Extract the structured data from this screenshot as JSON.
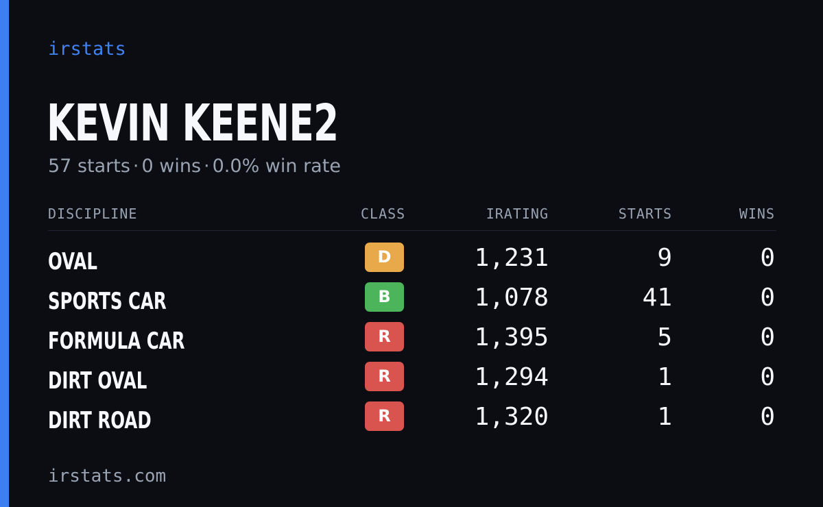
{
  "brand": "irstats",
  "driver": {
    "name": "KEVIN KEENE2"
  },
  "summary": {
    "starts": "57 starts",
    "wins": "0 wins",
    "win_rate": "0.0% win rate",
    "separator": "·"
  },
  "table": {
    "headers": {
      "discipline": "DISCIPLINE",
      "class": "CLASS",
      "irating": "IRATING",
      "starts": "STARTS",
      "wins": "WINS"
    },
    "rows": [
      {
        "discipline": "OVAL",
        "class": "D",
        "class_color": "#e8a94a",
        "irating": "1,231",
        "starts": "9",
        "wins": "0"
      },
      {
        "discipline": "SPORTS CAR",
        "class": "B",
        "class_color": "#4cb45a",
        "irating": "1,078",
        "starts": "41",
        "wins": "0"
      },
      {
        "discipline": "FORMULA CAR",
        "class": "R",
        "class_color": "#d9534f",
        "irating": "1,395",
        "starts": "5",
        "wins": "0"
      },
      {
        "discipline": "DIRT OVAL",
        "class": "R",
        "class_color": "#d9534f",
        "irating": "1,294",
        "starts": "1",
        "wins": "0"
      },
      {
        "discipline": "DIRT ROAD",
        "class": "R",
        "class_color": "#d9534f",
        "irating": "1,320",
        "starts": "1",
        "wins": "0"
      }
    ]
  },
  "footer": "irstats.com",
  "colors": {
    "background": "#0b0d13",
    "accent": "#3d7ff2",
    "muted_text": "#9aa3b2",
    "primary_text": "#f7f8fb"
  }
}
